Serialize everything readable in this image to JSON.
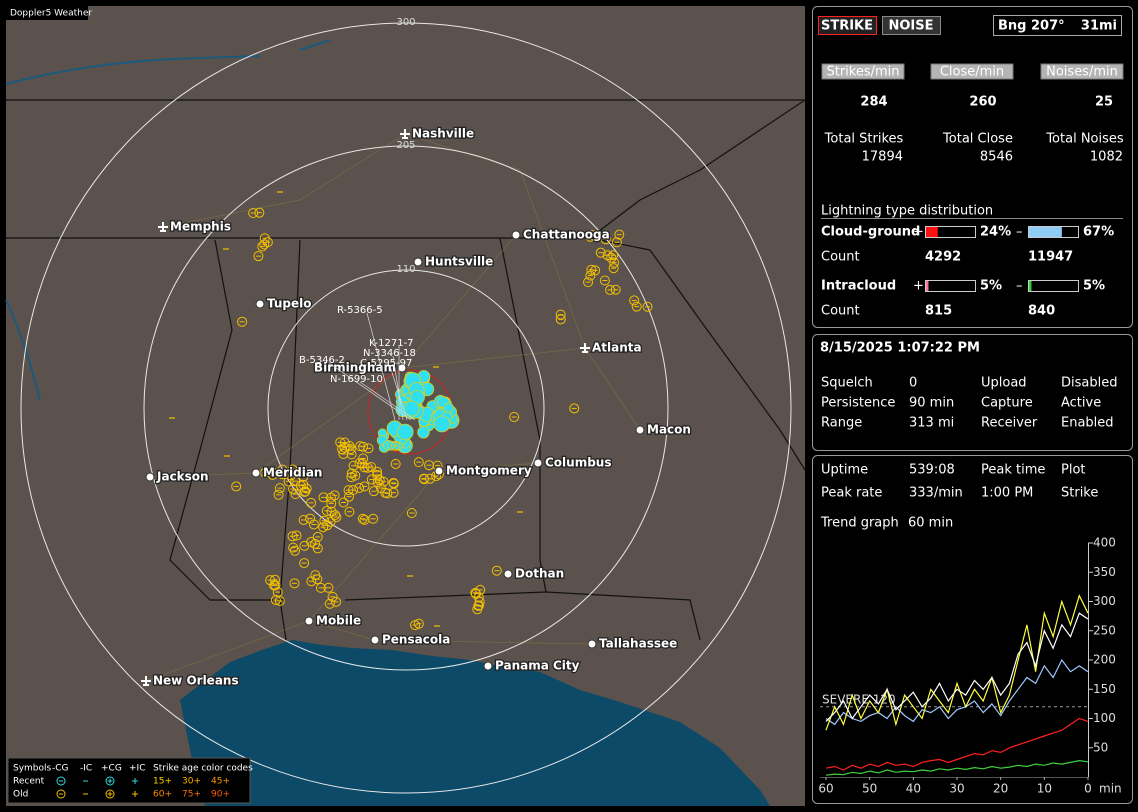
{
  "map": {
    "title": "Doppler5 Weather",
    "ring_labels": [
      "300",
      "205",
      "110"
    ],
    "cities": [
      "Nashville",
      "Memphis",
      "Chattanooga",
      "Huntsville",
      "Tupelo",
      "Atlanta",
      "Birmingham",
      "Macon",
      "Jackson",
      "Meridian",
      "Montgomery",
      "Columbus",
      "Dothan",
      "Mobile",
      "Pensacola",
      "Tallahassee",
      "Panama City",
      "New Orleans"
    ],
    "storm_labels": [
      "R-5366-5",
      "K-1271-7",
      "N-3346-18",
      "C-5295-97",
      "B-5346-2",
      "N-1699-10"
    ],
    "legend": {
      "header": [
        "Symbols",
        "-CG",
        "-IC",
        "+CG",
        "+IC",
        "Strike age color codes"
      ],
      "recent": {
        "label": "Recent",
        "ages": [
          "15+",
          "30+",
          "45+"
        ]
      },
      "old": {
        "label": "Old",
        "ages": [
          "60+",
          "75+",
          "90+"
        ]
      }
    }
  },
  "status": {
    "modes": [
      "STRIKE",
      "NOISE"
    ],
    "bearing": "Bng 207°",
    "distance": "31mi",
    "rate_labels": [
      "Strikes/min",
      "Close/min",
      "Noises/min"
    ],
    "rates": [
      284,
      260,
      25
    ],
    "total_labels": [
      "Total Strikes",
      "Total Close",
      "Total Noises"
    ],
    "totals": [
      17894,
      8546,
      1082
    ]
  },
  "distribution": {
    "title": "Lightning type distribution",
    "plus": "+",
    "minus": "–",
    "count_label": "Count",
    "rows": [
      {
        "label": "Cloud-ground",
        "plus_pct": 24,
        "plus_text": "24%",
        "minus_pct": 67,
        "minus_text": "67%",
        "plus_count": 4292,
        "minus_count": 11947
      },
      {
        "label": "Intracloud",
        "plus_pct": 5,
        "plus_text": "5%",
        "minus_pct": 5,
        "minus_text": "5%",
        "plus_count": 815,
        "minus_count": 840
      }
    ]
  },
  "settings": {
    "datetime": "8/15/2025 1:07:22 PM",
    "rows": [
      [
        "Squelch",
        0,
        "Upload",
        "Disabled"
      ],
      [
        "Persistence",
        "90 min",
        "Capture",
        "Active"
      ],
      [
        "Range",
        "313 mi",
        "Receiver",
        "Enabled"
      ]
    ]
  },
  "stats": {
    "rows": [
      [
        "Uptime",
        "539:08",
        "Peak time",
        "Plot"
      ],
      [
        "Peak rate",
        "333/min",
        "1:00 PM",
        "Strike"
      ]
    ],
    "trend_label": "Trend graph",
    "trend_span": "60 min"
  },
  "trend": {
    "type": "line",
    "xlim": [
      60,
      0
    ],
    "ylim": [
      0,
      400
    ],
    "xticks": [
      60,
      50,
      40,
      30,
      20,
      10,
      0
    ],
    "yticks": [
      50,
      100,
      150,
      200,
      250,
      300,
      350,
      400
    ],
    "x_unit": "min",
    "severe": {
      "label": "SEVERE 120",
      "value": 120
    },
    "x": [
      60,
      58,
      56,
      54,
      52,
      50,
      48,
      46,
      44,
      42,
      40,
      38,
      36,
      34,
      32,
      30,
      28,
      26,
      24,
      22,
      20,
      18,
      16,
      14,
      12,
      10,
      8,
      6,
      4,
      2,
      0
    ],
    "series": [
      {
        "color": "#ffffff",
        "values": [
          95,
          110,
          130,
          100,
          120,
          140,
          125,
          150,
          115,
          130,
          145,
          120,
          135,
          160,
          130,
          150,
          140,
          165,
          150,
          170,
          140,
          160,
          210,
          230,
          190,
          250,
          220,
          260,
          240,
          280,
          270
        ]
      },
      {
        "color": "#ffff40",
        "values": [
          80,
          120,
          90,
          140,
          100,
          130,
          110,
          150,
          90,
          140,
          120,
          100,
          150,
          130,
          110,
          160,
          120,
          150,
          130,
          170,
          110,
          140,
          200,
          260,
          180,
          280,
          240,
          300,
          260,
          310,
          280
        ]
      },
      {
        "color": "#9fc8ff",
        "values": [
          100,
          90,
          110,
          100,
          95,
          105,
          110,
          100,
          120,
          105,
          95,
          115,
          110,
          120,
          100,
          115,
          120,
          130,
          110,
          125,
          105,
          130,
          150,
          170,
          160,
          190,
          170,
          200,
          180,
          190,
          180
        ]
      },
      {
        "color": "#ff2020",
        "values": [
          15,
          18,
          12,
          20,
          15,
          22,
          18,
          25,
          20,
          22,
          18,
          25,
          28,
          30,
          25,
          30,
          35,
          40,
          38,
          45,
          42,
          50,
          55,
          60,
          65,
          70,
          75,
          80,
          90,
          100,
          95
        ]
      },
      {
        "color": "#40d040",
        "values": [
          3,
          5,
          4,
          8,
          6,
          10,
          7,
          12,
          8,
          10,
          9,
          12,
          10,
          14,
          12,
          15,
          13,
          16,
          14,
          18,
          15,
          17,
          20,
          18,
          22,
          20,
          24,
          22,
          25,
          28,
          26
        ]
      }
    ]
  }
}
